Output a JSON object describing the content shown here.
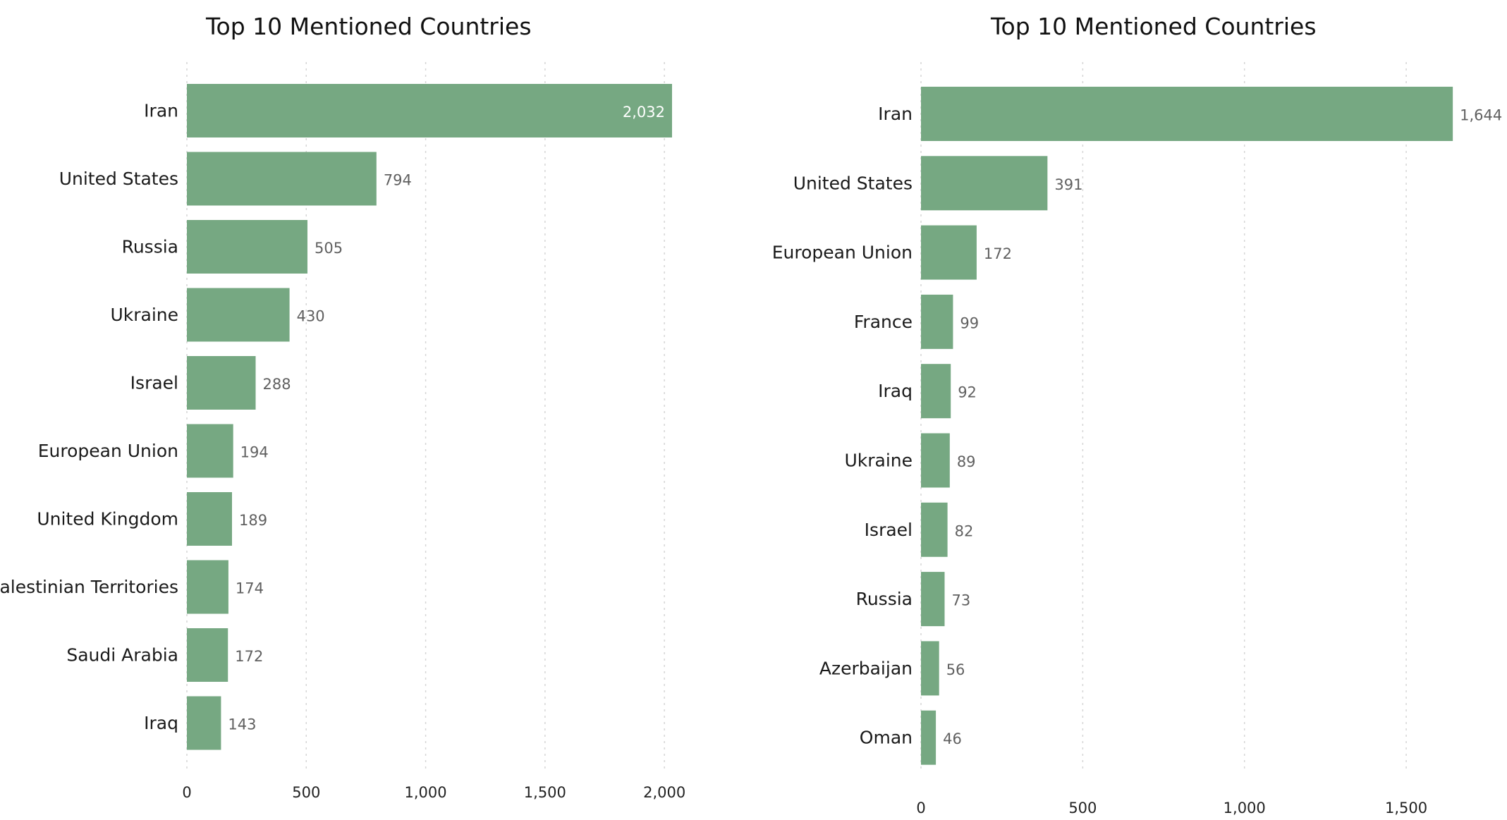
{
  "chart_data": [
    {
      "type": "bar",
      "orientation": "horizontal",
      "title": "Top 10 Mentioned Countries",
      "categories": [
        "Iran",
        "United States",
        "Russia",
        "Ukraine",
        "Israel",
        "European Union",
        "United Kingdom",
        "Palestinian Territories",
        "Saudi Arabia",
        "Iraq"
      ],
      "values": [
        2032,
        794,
        505,
        430,
        288,
        194,
        189,
        174,
        172,
        143
      ],
      "value_labels": [
        "2,032",
        "794",
        "505",
        "430",
        "288",
        "194",
        "189",
        "174",
        "172",
        "143"
      ],
      "xticks": [
        0,
        500,
        1000,
        1500,
        2000
      ],
      "xtick_labels": [
        "0",
        "500",
        "1,000",
        "1,500",
        "2,000"
      ],
      "xlim": [
        0,
        2100
      ],
      "grid": true,
      "bar_color": "#76a882"
    },
    {
      "type": "bar",
      "orientation": "horizontal",
      "title": "Top 10 Mentioned Countries",
      "categories": [
        "Iran",
        "United States",
        "European Union",
        "France",
        "Iraq",
        "Ukraine",
        "Israel",
        "Russia",
        "Azerbaijan",
        "Oman"
      ],
      "values": [
        1644,
        391,
        172,
        99,
        92,
        89,
        82,
        73,
        56,
        46
      ],
      "value_labels": [
        "1,644",
        "391",
        "172",
        "99",
        "92",
        "89",
        "82",
        "73",
        "56",
        "46"
      ],
      "xticks": [
        0,
        500,
        1000,
        1500
      ],
      "xtick_labels": [
        "0",
        "500",
        "1,000",
        "1,500"
      ],
      "xlim": [
        0,
        1720
      ],
      "grid": true,
      "bar_color": "#76a882"
    }
  ]
}
